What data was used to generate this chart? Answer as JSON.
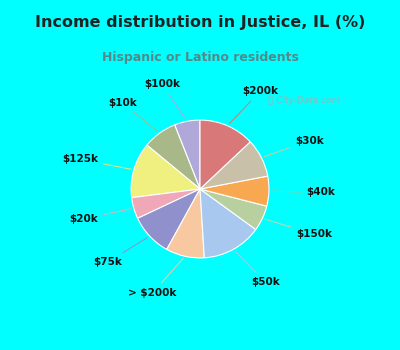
{
  "title": "Income distribution in Justice, IL (%)",
  "subtitle": "Hispanic or Latino residents",
  "watermark": "City-Data.com",
  "labels": [
    "$100k",
    "$10k",
    "$125k",
    "$20k",
    "$75k",
    "> $200k",
    "$50k",
    "$150k",
    "$40k",
    "$30k",
    "$200k"
  ],
  "values": [
    6,
    8,
    13,
    5,
    10,
    9,
    14,
    6,
    7,
    9,
    13
  ],
  "colors": [
    "#b0a8d8",
    "#a8b888",
    "#f0f080",
    "#f0a8b8",
    "#9090cc",
    "#f8c8a0",
    "#a8c8f0",
    "#b8d0a0",
    "#f8a850",
    "#c8c0a8",
    "#d87878"
  ],
  "line_colors": [
    "#b0a8d8",
    "#a8b888",
    "#e8e870",
    "#f0a8b8",
    "#9090cc",
    "#f8c8a0",
    "#a8c8f0",
    "#c8d8a0",
    "#f8a850",
    "#d8c8a0",
    "#d87878"
  ],
  "background_top": "#00ffff",
  "background_chart": "#e0f0e8",
  "title_color": "#222222",
  "subtitle_color": "#558888",
  "label_color": "#111111",
  "startangle": 90,
  "figsize": [
    4.0,
    3.5
  ],
  "dpi": 100
}
